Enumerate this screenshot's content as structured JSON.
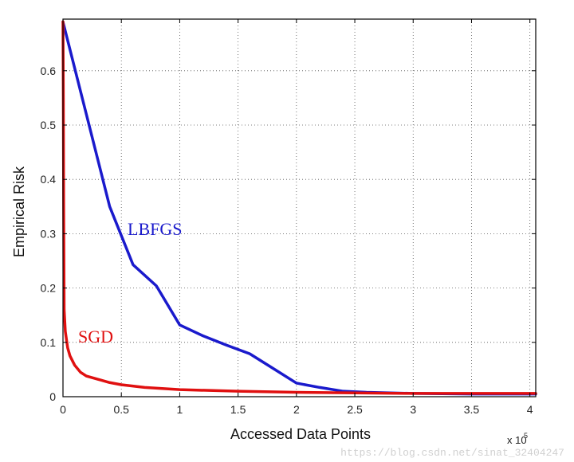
{
  "chart_data": {
    "type": "line",
    "xlabel": "Accessed Data Points",
    "ylabel": "Empirical Risk",
    "x_multiplier_label": "x 10",
    "x_multiplier_exp": "5",
    "xlim": [
      0,
      4.05
    ],
    "ylim": [
      0,
      0.695
    ],
    "xticks": [
      0,
      0.5,
      1,
      1.5,
      2,
      2.5,
      3,
      3.5,
      4
    ],
    "xtick_labels": [
      "0",
      "0.5",
      "1",
      "1.5",
      "2",
      "2.5",
      "3",
      "3.5",
      "4"
    ],
    "yticks": [
      0,
      0.1,
      0.2,
      0.3,
      0.4,
      0.5,
      0.6
    ],
    "ytick_labels": [
      "0",
      "0.1",
      "0.2",
      "0.3",
      "0.4",
      "0.5",
      "0.6"
    ],
    "grid": true,
    "series": [
      {
        "name": "LBFGS",
        "color": "#1a1acc",
        "x": [
          0,
          0.2,
          0.4,
          0.6,
          0.8,
          1.0,
          1.2,
          1.4,
          1.6,
          1.8,
          2.0,
          2.2,
          2.4,
          2.6,
          2.8,
          3.0,
          3.5,
          4.05
        ],
        "y": [
          0.69,
          0.52,
          0.35,
          0.243,
          0.204,
          0.132,
          0.112,
          0.095,
          0.079,
          0.052,
          0.025,
          0.017,
          0.01,
          0.008,
          0.007,
          0.006,
          0.005,
          0.005
        ]
      },
      {
        "name": "SGD",
        "color": "#e01010",
        "x": [
          0,
          0.003,
          0.006,
          0.01,
          0.02,
          0.04,
          0.06,
          0.1,
          0.15,
          0.2,
          0.3,
          0.4,
          0.5,
          0.7,
          1.0,
          1.5,
          2.0,
          2.5,
          3.0,
          3.5,
          4.05
        ],
        "y": [
          0.69,
          0.55,
          0.35,
          0.16,
          0.12,
          0.09,
          0.075,
          0.058,
          0.045,
          0.038,
          0.032,
          0.026,
          0.022,
          0.017,
          0.013,
          0.01,
          0.008,
          0.007,
          0.006,
          0.006,
          0.006
        ]
      }
    ]
  },
  "annotations": {
    "lbfgs_label": "LBFGS",
    "sgd_label": "SGD"
  },
  "watermark": "https://blog.csdn.net/sinat_32404247"
}
